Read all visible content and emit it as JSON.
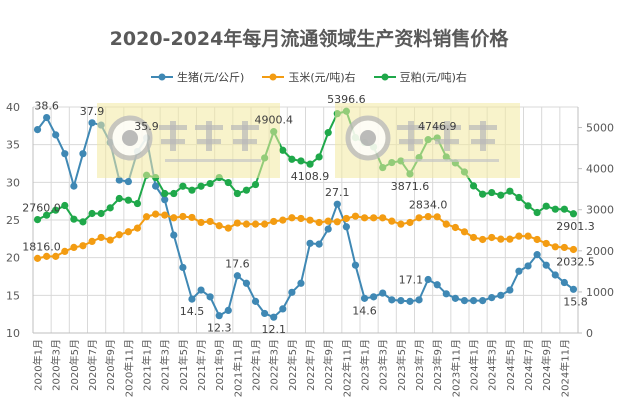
{
  "chart_data": {
    "type": "line",
    "title": "2020-2024年每月流通领域生产资料销售价格",
    "categories_labels": [
      "2020年1月",
      "2020年3月",
      "2020年5月",
      "2020年7月",
      "2020年9月",
      "2020年11月",
      "2021年1月",
      "2021年3月",
      "2021年5月",
      "2021年7月",
      "2021年9月",
      "2021年11月",
      "2022年1月",
      "2022年3月",
      "2022年5月",
      "2022年7月",
      "2022年9月",
      "2022年11月",
      "2023年1月",
      "2023年3月",
      "2023年5月",
      "2023年7月",
      "2023年9月",
      "2023年11月",
      "2024年1月",
      "2024年3月",
      "2024年5月",
      "2024年7月",
      "2024年9月",
      "2024年11月"
    ],
    "x_range": [
      "2020年1月",
      "2024年12月"
    ],
    "y_left": {
      "min": 10,
      "max": 40,
      "step": 5,
      "ticks": [
        "10",
        "15",
        "20",
        "25",
        "30",
        "35",
        "40"
      ]
    },
    "y_right": {
      "min": 0,
      "max": 5500,
      "ticks": [
        "0",
        "1000",
        "2000",
        "3000",
        "4000",
        "5000"
      ]
    },
    "grid": true,
    "legend_position": "top",
    "series": [
      {
        "name": "生猪(元/公斤)",
        "axis": "left",
        "color": "#3f88b4",
        "values": [
          37.0,
          38.6,
          36.3,
          33.8,
          29.5,
          33.8,
          37.9,
          37.6,
          35.3,
          30.3,
          30.1,
          34.1,
          35.9,
          29.5,
          27.7,
          23.0,
          18.7,
          14.5,
          15.7,
          14.8,
          12.3,
          13.0,
          17.6,
          16.6,
          14.2,
          12.6,
          12.1,
          13.2,
          15.4,
          16.6,
          21.9,
          21.8,
          23.8,
          27.1,
          24.1,
          19.0,
          14.6,
          14.8,
          15.3,
          14.4,
          14.3,
          14.2,
          14.4,
          17.1,
          16.4,
          15.2,
          14.6,
          14.3,
          14.3,
          14.3,
          14.7,
          15.0,
          15.7,
          18.2,
          18.9,
          20.4,
          19.0,
          17.7,
          16.7,
          15.8
        ],
        "labels": [
          {
            "i": 1,
            "text": "38.6",
            "pos": "above"
          },
          {
            "i": 6,
            "text": "37.9",
            "pos": "above"
          },
          {
            "i": 12,
            "text": "35.9",
            "pos": "above"
          },
          {
            "i": 17,
            "text": "14.5",
            "pos": "below"
          },
          {
            "i": 20,
            "text": "12.3",
            "pos": "below"
          },
          {
            "i": 22,
            "text": "17.6",
            "pos": "above"
          },
          {
            "i": 26,
            "text": "12.1",
            "pos": "below"
          },
          {
            "i": 33,
            "text": "27.1",
            "pos": "above"
          },
          {
            "i": 36,
            "text": "14.6",
            "pos": "below"
          },
          {
            "i": 43,
            "text": "17.1",
            "pos": "left"
          },
          {
            "i": 59,
            "text": "15.8",
            "pos": "below"
          }
        ]
      },
      {
        "name": "玉米(元/吨)右",
        "axis": "right",
        "color": "#f39c12",
        "values": [
          1816.0,
          1865,
          1865,
          1986,
          2083,
          2124,
          2229,
          2326,
          2262,
          2391,
          2464,
          2553,
          2829,
          2893,
          2869,
          2804,
          2836,
          2812,
          2691,
          2715,
          2610,
          2553,
          2675,
          2650,
          2650,
          2650,
          2715,
          2747,
          2804,
          2787,
          2746,
          2690,
          2722,
          2706,
          2787,
          2843,
          2803,
          2803,
          2803,
          2722,
          2649,
          2690,
          2803,
          2834.0,
          2827,
          2649,
          2568,
          2463,
          2325,
          2276,
          2325,
          2284,
          2284,
          2357,
          2357,
          2276,
          2179,
          2098,
          2082,
          2032.5
        ],
        "labels": [
          {
            "i": 0,
            "text": "1816.0",
            "pos": "above"
          },
          {
            "i": 43,
            "text": "2834.0",
            "pos": "above"
          },
          {
            "i": 59,
            "text": "2032.5",
            "pos": "below"
          }
        ]
      },
      {
        "name": "豆粕(元/吨)右",
        "axis": "right",
        "color": "#1fa84a",
        "values": [
          2760.0,
          2867,
          2989,
          3102,
          2770,
          2705,
          2908,
          2908,
          3045,
          3273,
          3232,
          3151,
          3839,
          3783,
          3394,
          3394,
          3572,
          3475,
          3572,
          3637,
          3783,
          3661,
          3394,
          3475,
          3613,
          4260,
          4900.4,
          4447,
          4228,
          4187,
          4108.9,
          4285,
          4876,
          5338,
          5396.6,
          4755,
          4634,
          4528,
          4026,
          4148,
          4187,
          3871.6,
          4269,
          4706,
          4746.9,
          4285,
          4139,
          3920,
          3580,
          3378,
          3418,
          3353,
          3451,
          3297,
          3094,
          2932,
          3086,
          3013,
          3013,
          2901.3
        ],
        "labels": [
          {
            "i": 0,
            "text": "2760.0",
            "pos": "above"
          },
          {
            "i": 26,
            "text": "4900.4",
            "pos": "above"
          },
          {
            "i": 30,
            "text": "4108.9",
            "pos": "below"
          },
          {
            "i": 34,
            "text": "5396.6",
            "pos": "above"
          },
          {
            "i": 41,
            "text": "3871.6",
            "pos": "below"
          },
          {
            "i": 44,
            "text": "4746.9",
            "pos": "above"
          },
          {
            "i": 59,
            "text": "2901.3",
            "pos": "below"
          }
        ]
      }
    ]
  },
  "watermark": {
    "brand": "大畜牧",
    "url": "www.dxumu.com"
  }
}
